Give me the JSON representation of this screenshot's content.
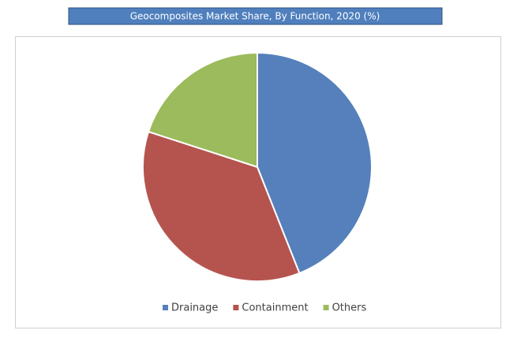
{
  "chart_data": {
    "type": "pie",
    "title": "Geocomposites Market Share, By Function, 2020 (%)",
    "categories": [
      "Drainage",
      "Containment",
      "Others"
    ],
    "values": [
      44,
      36,
      20
    ],
    "colors": [
      "#5580bb",
      "#b5544f",
      "#9bbb5c"
    ]
  }
}
